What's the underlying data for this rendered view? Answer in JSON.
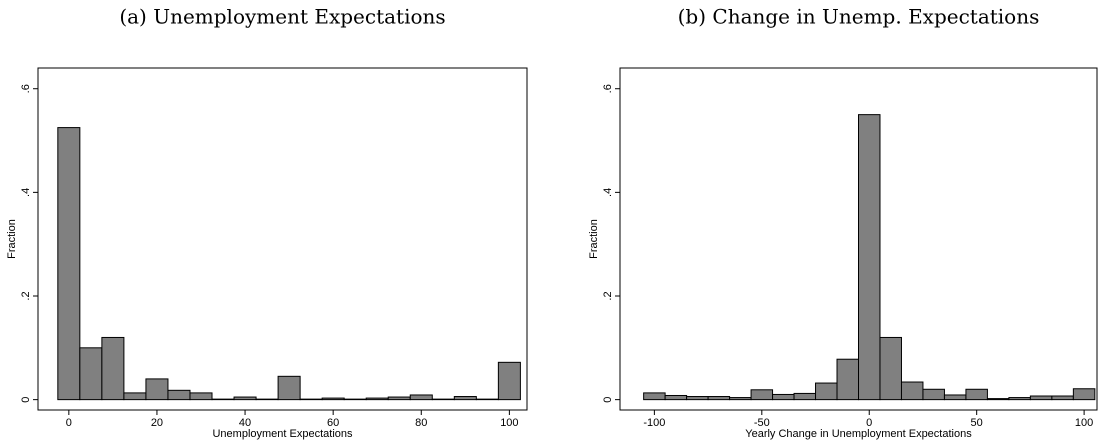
{
  "chart_data": [
    {
      "type": "histogram",
      "title": "(a) Unemployment Expectations",
      "xlabel": "Unemployment Expectations",
      "ylabel": "Fraction",
      "bins": [
        -2.5,
        2.5,
        7.5,
        12.5,
        17.5,
        22.5,
        27.5,
        32.5,
        37.5,
        42.5,
        47.5,
        52.5,
        57.5,
        62.5,
        67.5,
        72.5,
        77.5,
        82.5,
        87.5,
        92.5,
        97.5,
        102.5
      ],
      "values": [
        0.525,
        0.1,
        0.12,
        0.013,
        0.04,
        0.018,
        0.013,
        0.001,
        0.005,
        0.001,
        0.045,
        0.001,
        0.003,
        0.001,
        0.003,
        0.005,
        0.009,
        0.001,
        0.006,
        0.001,
        0.072
      ],
      "color": "#808080",
      "xlim": [
        -7,
        104
      ],
      "ylim": [
        -0.02,
        0.64
      ],
      "xticks": [
        0,
        20,
        40,
        60,
        80,
        100
      ],
      "yticks": [
        0,
        {
          "value": 0.2,
          "label": ".2"
        },
        {
          "value": 0.4,
          "label": ".4"
        },
        {
          "value": 0.6,
          "label": ".6"
        }
      ]
    },
    {
      "type": "histogram",
      "title": "(b) Change in Unemp. Expectations",
      "xlabel": "Yearly Change in Unemployment Expectations",
      "ylabel": "Fraction",
      "bins": [
        -105,
        -95,
        -85,
        -75,
        -65,
        -55,
        -45,
        -35,
        -25,
        -15,
        -5,
        5,
        15,
        25,
        35,
        45,
        55,
        65,
        75,
        85,
        95,
        105
      ],
      "values": [
        0.013,
        0.008,
        0.006,
        0.006,
        0.004,
        0.019,
        0.01,
        0.012,
        0.032,
        0.078,
        0.55,
        0.12,
        0.034,
        0.02,
        0.009,
        0.02,
        0.002,
        0.004,
        0.007,
        0.007,
        0.021
      ],
      "color": "#808080",
      "xlim": [
        -116,
        106
      ],
      "ylim": [
        -0.02,
        0.64
      ],
      "xticks": [
        -100,
        -50,
        0,
        50,
        100
      ],
      "yticks": [
        0,
        {
          "value": 0.2,
          "label": ".2"
        },
        {
          "value": 0.4,
          "label": ".4"
        },
        {
          "value": 0.6,
          "label": ".6"
        }
      ]
    }
  ]
}
